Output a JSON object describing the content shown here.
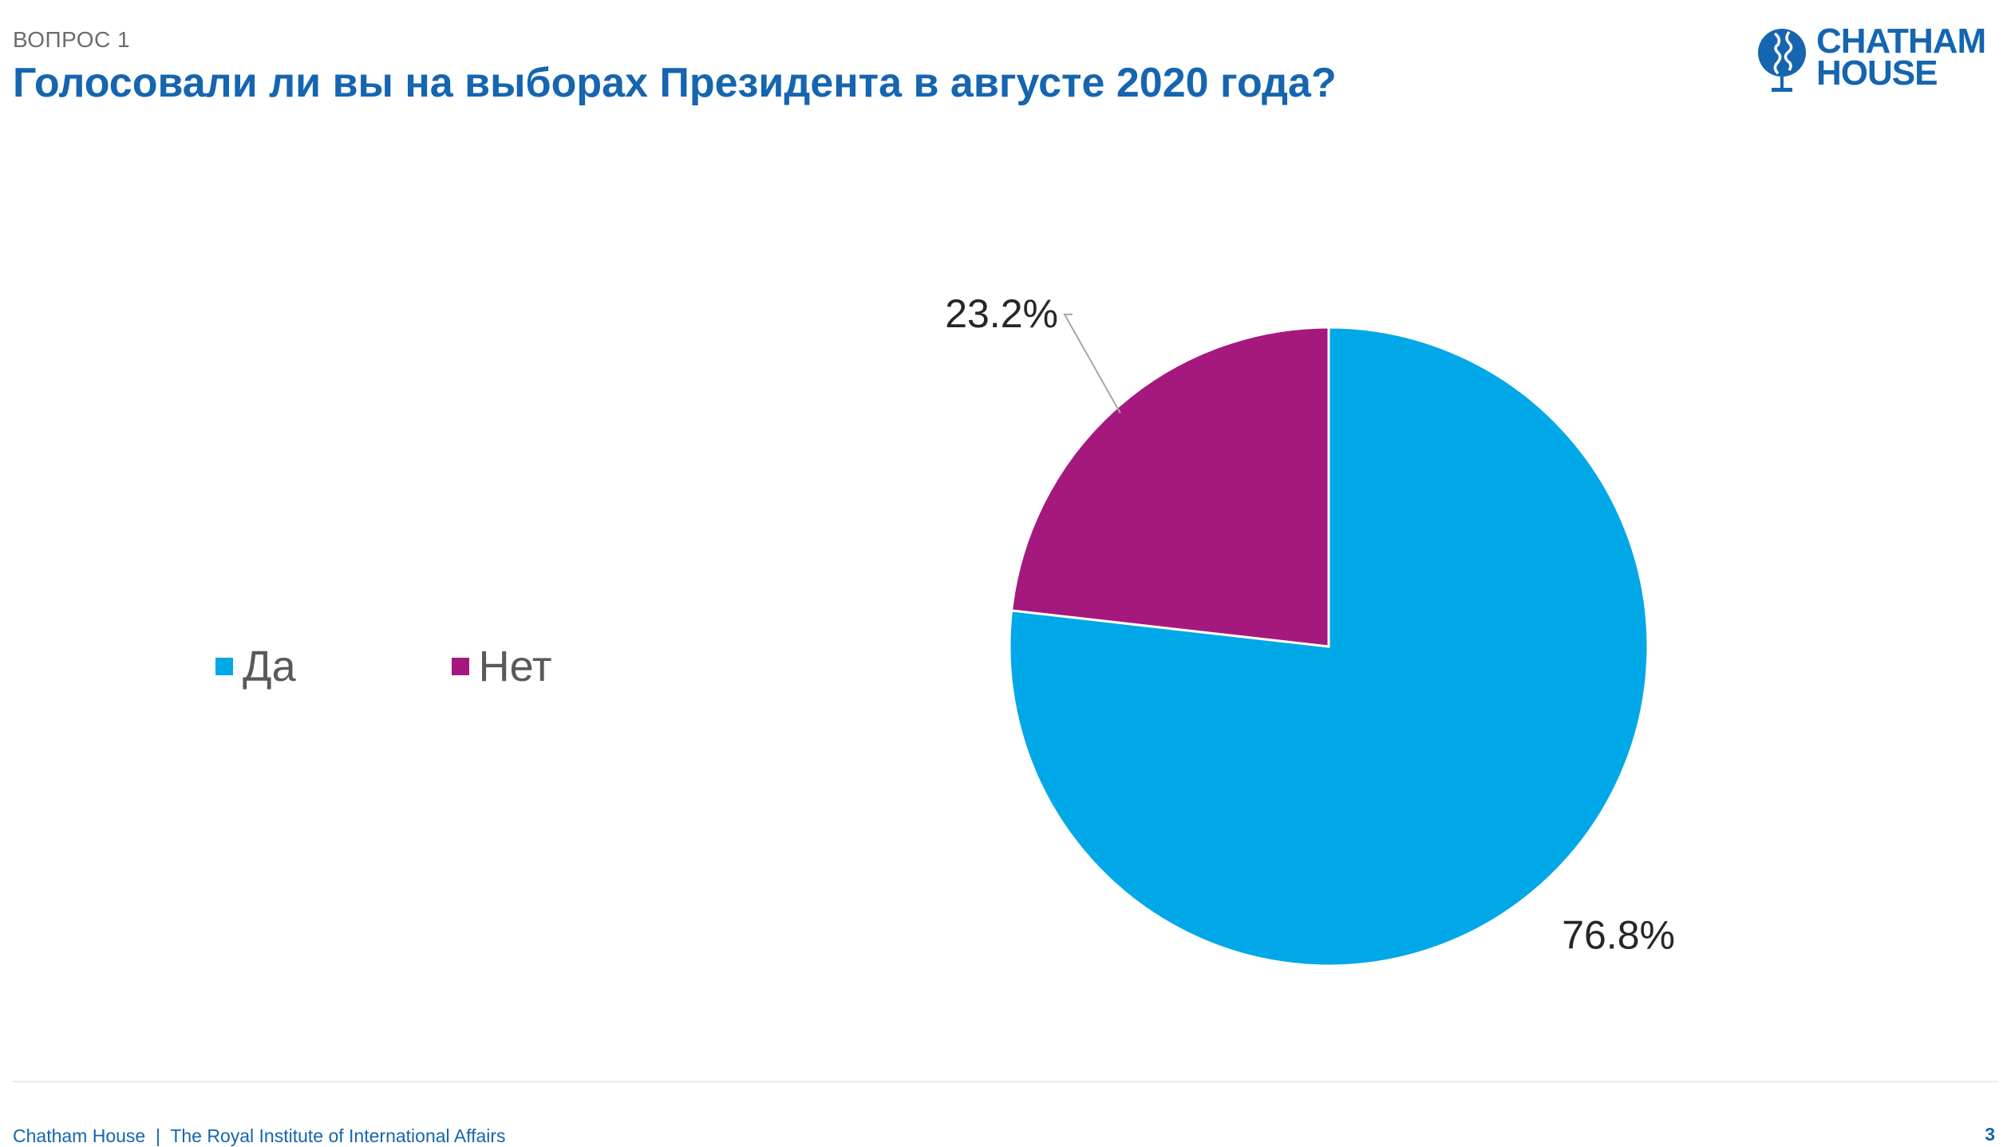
{
  "header": {
    "question_label": "ВОПРОС 1",
    "title": "Голосовали ли вы на выборах Президента в августе 2020 года?"
  },
  "logo": {
    "line1": "CHATHAM",
    "line2": "HOUSE",
    "icon": "globe-heads-icon",
    "color": "#1565b0"
  },
  "chart_data": {
    "type": "pie",
    "categories": [
      "Да",
      "Нет"
    ],
    "values": [
      76.8,
      23.2
    ],
    "labels": [
      "76.8%",
      "23.2%"
    ],
    "colors": [
      "#00a8e8",
      "#a5197f"
    ],
    "legend": "left"
  },
  "footer": {
    "text": "Chatham House  |  The Royal Institute of International Affairs",
    "page_number": "3"
  }
}
